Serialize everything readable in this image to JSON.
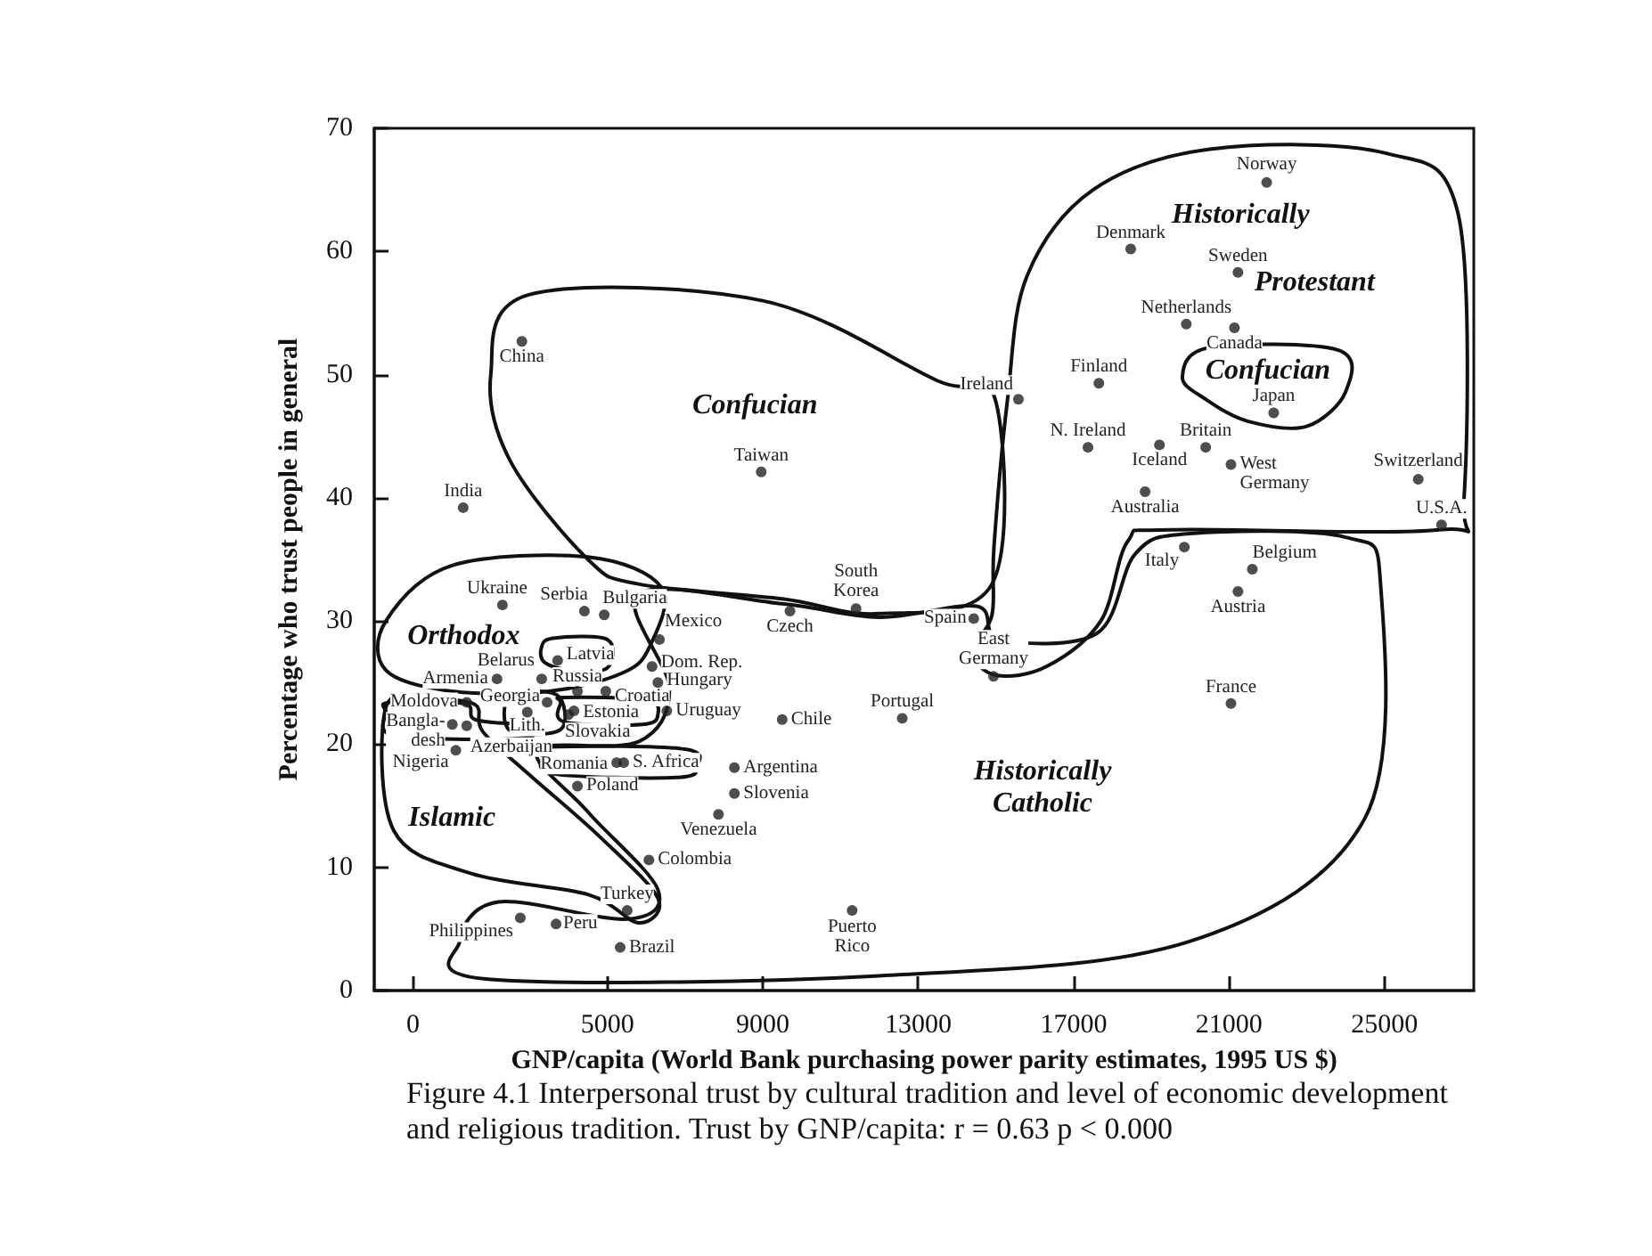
{
  "chart_data": {
    "type": "scatter",
    "xlabel": "GNP/capita (World Bank purchasing power parity estimates, 1995 US $)",
    "ylabel": "Percentage who trust people in general",
    "x": [
      2800,
      1290,
      8960,
      2300,
      4410,
      4920,
      6340,
      3720,
      4230,
      3310,
      2160,
      6150,
      6300,
      1380,
      3450,
      4960,
      4140,
      2940,
      4000,
      6530,
      9500,
      1010,
      1380,
      1100,
      5240,
      5420,
      8270,
      4230,
      8270,
      7860,
      6070,
      5510,
      2760,
      3680,
      5330,
      9700,
      11400,
      14430,
      14940,
      12590,
      19850,
      21600,
      21230,
      21050,
      11300,
      21970,
      18470,
      21230,
      19900,
      21140,
      17650,
      15580,
      22150,
      17370,
      19210,
      20400,
      21050,
      18840,
      25870,
      26470
    ],
    "values": [
      52.7,
      39.2,
      42.1,
      31.3,
      30.8,
      30.5,
      28.5,
      26.8,
      24.3,
      25.3,
      25.3,
      26.3,
      25.0,
      23.4,
      23.4,
      24.3,
      22.7,
      22.6,
      22.4,
      22.7,
      22.0,
      21.6,
      21.5,
      19.5,
      18.5,
      18.5,
      18.1,
      16.6,
      16.0,
      14.3,
      10.6,
      6.5,
      5.9,
      5.4,
      3.5,
      30.8,
      31.0,
      30.2,
      25.5,
      22.1,
      36.0,
      34.2,
      32.4,
      23.3,
      6.5,
      65.6,
      60.2,
      58.3,
      54.1,
      53.8,
      49.3,
      48.0,
      46.9,
      44.1,
      44.3,
      44.1,
      42.7,
      40.5,
      41.5,
      37.8
    ],
    "color": "#222222",
    "marker": "circle",
    "grid": false,
    "xlim": [
      -1000,
      27300
    ],
    "xticks": [
      0,
      5000,
      9000,
      13000,
      17000,
      21000,
      25000
    ],
    "ylim": [
      0,
      70
    ],
    "yticks": [
      0,
      10,
      20,
      30,
      40,
      50,
      60,
      70
    ],
    "annotations": [
      {
        "text": "China",
        "x": 2800,
        "y": 52.7
      },
      {
        "text": "India",
        "x": 1290,
        "y": 39.2
      },
      {
        "text": "Taiwan",
        "x": 8960,
        "y": 42.1
      },
      {
        "text": "Ukraine",
        "x": 2300,
        "y": 31.3
      },
      {
        "text": "Serbia",
        "x": 4410,
        "y": 30.8
      },
      {
        "text": "Bulgaria",
        "x": 4920,
        "y": 30.5
      },
      {
        "text": "Mexico",
        "x": 6340,
        "y": 28.5
      },
      {
        "text": "Latvia",
        "x": 3720,
        "y": 26.8
      },
      {
        "text": "Russia",
        "x": 4230,
        "y": 24.3
      },
      {
        "text": "Belarus",
        "x": 3310,
        "y": 25.3
      },
      {
        "text": "Armenia",
        "x": 2160,
        "y": 25.3
      },
      {
        "text": "Dom. Rep.",
        "x": 6150,
        "y": 26.3
      },
      {
        "text": "Hungary",
        "x": 6300,
        "y": 25.0
      },
      {
        "text": "Moldova",
        "x": 1380,
        "y": 23.4
      },
      {
        "text": "Georgia",
        "x": 3450,
        "y": 23.4
      },
      {
        "text": "Croatia",
        "x": 4960,
        "y": 24.3
      },
      {
        "text": "Estonia",
        "x": 4140,
        "y": 22.7
      },
      {
        "text": "Lith.",
        "x": 2940,
        "y": 22.6
      },
      {
        "text": "Slovakia",
        "x": 4000,
        "y": 22.4
      },
      {
        "text": "Uruguay",
        "x": 6530,
        "y": 22.7
      },
      {
        "text": "Chile",
        "x": 9500,
        "y": 22.0
      },
      {
        "text": "Bangla-\ndesh",
        "x": 1010,
        "y": 21.6
      },
      {
        "text": "Azerbaijan",
        "x": 1380,
        "y": 21.5
      },
      {
        "text": "Nigeria",
        "x": 1100,
        "y": 19.5
      },
      {
        "text": "Romania",
        "x": 5240,
        "y": 18.5
      },
      {
        "text": "S. Africa",
        "x": 5420,
        "y": 18.5
      },
      {
        "text": "Argentina",
        "x": 8270,
        "y": 18.1
      },
      {
        "text": "Poland",
        "x": 4230,
        "y": 16.6
      },
      {
        "text": "Slovenia",
        "x": 8270,
        "y": 16.0
      },
      {
        "text": "Venezuela",
        "x": 7860,
        "y": 14.3
      },
      {
        "text": "Colombia",
        "x": 6070,
        "y": 10.6
      },
      {
        "text": "Turkey",
        "x": 5510,
        "y": 6.5
      },
      {
        "text": "Philippines",
        "x": 2760,
        "y": 5.9
      },
      {
        "text": "Peru",
        "x": 3680,
        "y": 5.4
      },
      {
        "text": "Brazil",
        "x": 5330,
        "y": 3.5
      },
      {
        "text": "Czech",
        "x": 9700,
        "y": 30.8
      },
      {
        "text": "South\nKorea",
        "x": 11400,
        "y": 31.0
      },
      {
        "text": "Spain",
        "x": 14430,
        "y": 30.2
      },
      {
        "text": "East\nGermany",
        "x": 14940,
        "y": 25.5
      },
      {
        "text": "Portugal",
        "x": 12590,
        "y": 22.1
      },
      {
        "text": "Italy",
        "x": 19850,
        "y": 36.0
      },
      {
        "text": "Belgium",
        "x": 21600,
        "y": 34.2
      },
      {
        "text": "Austria",
        "x": 21230,
        "y": 32.4
      },
      {
        "text": "France",
        "x": 21050,
        "y": 23.3
      },
      {
        "text": "Puerto\nRico",
        "x": 11300,
        "y": 6.5
      },
      {
        "text": "Norway",
        "x": 21970,
        "y": 65.6
      },
      {
        "text": "Denmark",
        "x": 18470,
        "y": 60.2
      },
      {
        "text": "Sweden",
        "x": 21230,
        "y": 58.3
      },
      {
        "text": "Netherlands",
        "x": 19900,
        "y": 54.1
      },
      {
        "text": "Canada",
        "x": 21140,
        "y": 53.8
      },
      {
        "text": "Finland",
        "x": 17650,
        "y": 49.3
      },
      {
        "text": "Ireland",
        "x": 15580,
        "y": 48.0
      },
      {
        "text": "Japan",
        "x": 22150,
        "y": 46.9
      },
      {
        "text": "N. Ireland",
        "x": 17370,
        "y": 44.1
      },
      {
        "text": "Iceland",
        "x": 19210,
        "y": 44.3
      },
      {
        "text": "Britain",
        "x": 20400,
        "y": 44.1
      },
      {
        "text": "West\nGermany",
        "x": 21050,
        "y": 42.7
      },
      {
        "text": "Australia",
        "x": 18840,
        "y": 40.5
      },
      {
        "text": "Switzerland",
        "x": 25870,
        "y": 41.5
      },
      {
        "text": "U.S.A.",
        "x": 26470,
        "y": 37.8
      },
      "Historically",
      "Protestant",
      "Confucian",
      "Confucian",
      "Orthodox",
      "Islamic",
      "Historically\nCatholic",
      "Figure 4.1   Interpersonal trust by cultural tradition and level of economic development and religious tradition. Trust by GNP/capita: r = 0.63 p < 0.000"
    ]
  }
}
